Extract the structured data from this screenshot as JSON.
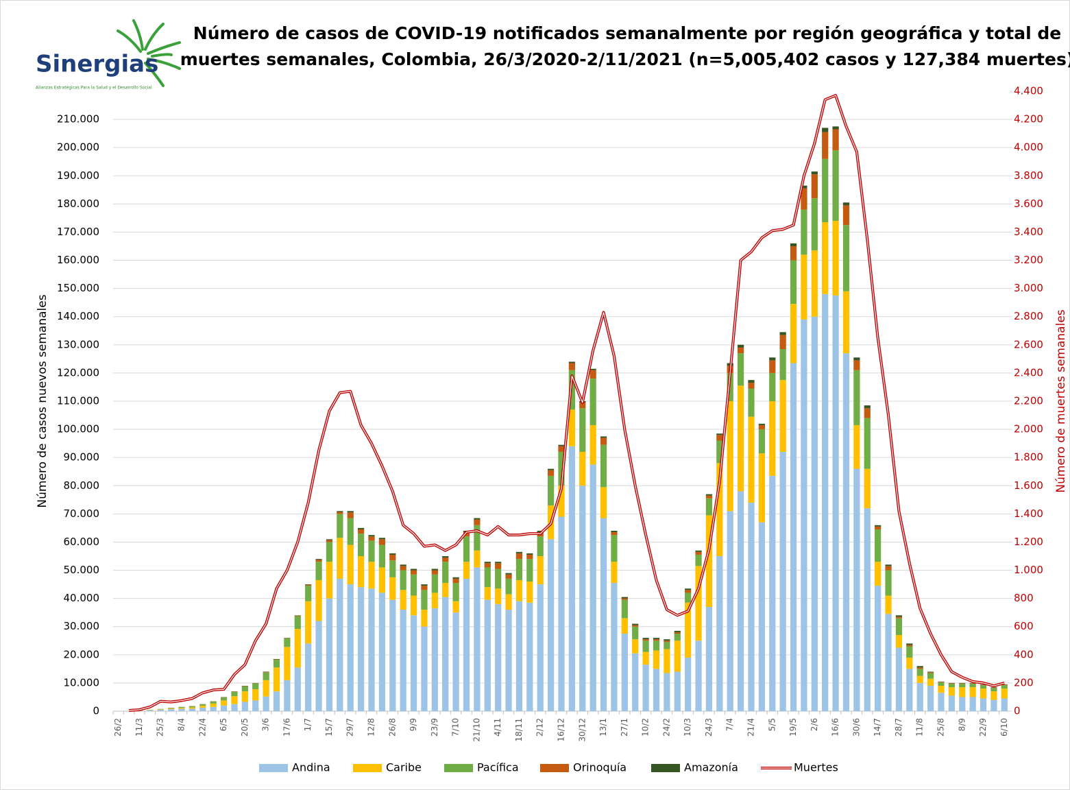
{
  "logo": {
    "name": "Sinergias",
    "tagline": "Alianzas Estratégicas Para la Salud y el Desarrollo Social"
  },
  "chart_data": {
    "type": "bar",
    "stacked": true,
    "title": [
      "Número de casos de COVID-19 notificados semanalmente por región geográfica y total de",
      "muertes semanales, Colombia, 26/3/2020-2/11/2021 (n=5,005,402 casos y 127,384 muertes)"
    ],
    "y_label": "Número de casos nuevos semanales",
    "y2_label": "Número de muertes semanales",
    "categories": [
      "26/2",
      null,
      "11/3",
      null,
      "25/3",
      null,
      "8/4",
      null,
      "22/4",
      null,
      "6/5",
      null,
      "20/5",
      null,
      "3/6",
      null,
      "17/6",
      null,
      "1/7",
      null,
      "15/7",
      null,
      "29/7",
      null,
      "12/8",
      null,
      "26/8",
      null,
      "9/9",
      null,
      "23/9",
      null,
      "7/10",
      null,
      "21/10",
      null,
      "4/11",
      null,
      "18/11",
      null,
      "2/12",
      null,
      "16/12",
      null,
      "30/12",
      null,
      "13/1",
      null,
      "27/1",
      null,
      "10/2",
      null,
      "24/2",
      null,
      "10/3",
      null,
      "24/3",
      null,
      "7/4",
      null,
      "21/4",
      null,
      "5/5",
      null,
      "19/5",
      null,
      "2/6",
      null,
      "16/6",
      null,
      "30/6",
      null,
      "14/7",
      null,
      "28/7",
      null,
      "11/8",
      null,
      "25/8",
      null,
      "8/9",
      null,
      "22/9",
      null,
      "6/10"
    ],
    "series": [
      {
        "name": "Andina",
        "color": "#9dc3e6",
        "values": [
          0,
          0,
          100,
          300,
          500,
          700,
          800,
          900,
          1200,
          1500,
          2000,
          2500,
          3300,
          3800,
          5200,
          7000,
          11000,
          15500,
          24000,
          32000,
          40000,
          47000,
          45000,
          44000,
          43500,
          42000,
          39500,
          36000,
          34000,
          30000,
          36500,
          40500,
          35000,
          47000,
          51000,
          39500,
          38000,
          36000,
          39000,
          38500,
          45000,
          61000,
          69000,
          94000,
          80000,
          87500,
          68500,
          45500,
          27500,
          20500,
          16500,
          15000,
          13500,
          14000,
          19000,
          25000,
          37000,
          55000,
          71000,
          78000,
          74000,
          67000,
          83500,
          92000,
          123500,
          139000,
          140000,
          148000,
          147500,
          127000,
          86000,
          72000,
          44500,
          34500,
          22500,
          15000,
          10000,
          9000,
          6500,
          5500,
          5000,
          5000,
          4500,
          4000,
          4500
        ]
      },
      {
        "name": "Caribe",
        "color": "#ffc000",
        "values": [
          0,
          0,
          50,
          100,
          150,
          250,
          350,
          450,
          700,
          1200,
          1800,
          2800,
          3700,
          4000,
          5800,
          8500,
          11800,
          13700,
          15000,
          14500,
          13000,
          14500,
          14000,
          11000,
          9500,
          9000,
          8000,
          7000,
          7000,
          6000,
          5500,
          5000,
          4000,
          6000,
          6000,
          4500,
          5500,
          5500,
          7500,
          7500,
          10000,
          12000,
          11000,
          13000,
          12000,
          14000,
          11000,
          7500,
          5500,
          5000,
          4500,
          6500,
          8500,
          11000,
          19500,
          26500,
          32500,
          33000,
          39000,
          37500,
          30500,
          24500,
          26500,
          25500,
          21000,
          23000,
          23500,
          25500,
          26500,
          22000,
          15500,
          14000,
          8500,
          6500,
          4500,
          4000,
          2500,
          2500,
          2500,
          3000,
          3500,
          3500,
          3500,
          3000,
          3500
        ]
      },
      {
        "name": "Pacífica",
        "color": "#70ad47",
        "values": [
          0,
          0,
          40,
          80,
          120,
          200,
          300,
          350,
          500,
          700,
          1000,
          1500,
          1800,
          2000,
          2700,
          2700,
          3000,
          4500,
          5500,
          6500,
          7000,
          8500,
          9500,
          8000,
          7500,
          8000,
          6000,
          7000,
          7500,
          7000,
          6500,
          7500,
          6500,
          9000,
          9000,
          7000,
          7000,
          5500,
          7500,
          8000,
          7000,
          10500,
          12000,
          14000,
          15500,
          16500,
          15000,
          9500,
          6500,
          4500,
          4000,
          3500,
          2500,
          2500,
          3500,
          4000,
          6000,
          8000,
          10000,
          11500,
          10000,
          8500,
          10000,
          11000,
          15500,
          16000,
          18500,
          22500,
          25000,
          23500,
          19500,
          18000,
          11500,
          9000,
          6000,
          4000,
          2500,
          2000,
          1200,
          1200,
          1200,
          1200,
          1200,
          1200,
          1200
        ]
      },
      {
        "name": "Orinoquía",
        "color": "#c55a11",
        "values": [
          0,
          0,
          5,
          10,
          20,
          30,
          30,
          60,
          50,
          50,
          100,
          100,
          100,
          100,
          150,
          150,
          100,
          200,
          300,
          700,
          700,
          700,
          2000,
          1500,
          1500,
          2000,
          2000,
          1500,
          1500,
          1500,
          1500,
          1500,
          1500,
          1500,
          2000,
          1500,
          2000,
          1500,
          2000,
          1500,
          1500,
          2000,
          2000,
          2500,
          2000,
          3000,
          2500,
          1000,
          500,
          500,
          500,
          500,
          500,
          500,
          1000,
          1000,
          1000,
          2000,
          2500,
          2000,
          2000,
          1500,
          4500,
          5000,
          5000,
          7500,
          8500,
          9500,
          7500,
          7000,
          3500,
          3500,
          1000,
          1500,
          500,
          500,
          500,
          300,
          200,
          200,
          200,
          200,
          200,
          200,
          200
        ]
      },
      {
        "name": "Amazonía",
        "color": "#375623",
        "values": [
          0,
          0,
          5,
          10,
          10,
          20,
          20,
          40,
          50,
          50,
          100,
          100,
          100,
          100,
          150,
          150,
          100,
          100,
          200,
          300,
          300,
          300,
          500,
          500,
          500,
          500,
          500,
          500,
          500,
          500,
          500,
          500,
          500,
          500,
          500,
          500,
          500,
          500,
          500,
          500,
          500,
          500,
          500,
          500,
          500,
          500,
          500,
          500,
          500,
          500,
          500,
          500,
          500,
          500,
          500,
          500,
          500,
          500,
          1000,
          1000,
          1000,
          500,
          1000,
          1000,
          1000,
          1000,
          1000,
          1500,
          1000,
          1000,
          1000,
          1000,
          500,
          500,
          500,
          500,
          500,
          200,
          100,
          100,
          100,
          100,
          100,
          100,
          100
        ]
      },
      {
        "name": "Muertes",
        "color": "#c00000",
        "type": "line",
        "axis": "y2",
        "values": [
          null,
          5,
          10,
          30,
          70,
          65,
          75,
          90,
          130,
          150,
          155,
          260,
          330,
          500,
          620,
          870,
          1000,
          1200,
          1480,
          1850,
          2130,
          2260,
          2270,
          2030,
          1900,
          1740,
          1560,
          1320,
          1260,
          1170,
          1180,
          1140,
          1180,
          1270,
          1280,
          1250,
          1310,
          1250,
          1250,
          1260,
          1260,
          1330,
          1580,
          2380,
          2190,
          2560,
          2830,
          2520,
          2000,
          1600,
          1250,
          930,
          720,
          680,
          710,
          870,
          1150,
          1630,
          2400,
          3200,
          3260,
          3360,
          3410,
          3420,
          3450,
          3800,
          4030,
          4340,
          4370,
          4150,
          3970,
          3350,
          2650,
          2100,
          1420,
          1050,
          730,
          550,
          400,
          280,
          240,
          210,
          200,
          180,
          200
        ]
      }
    ],
    "ylim": [
      0,
      220000
    ],
    "yticks": [
      0,
      {
        "value": 10000,
        "label": "10.000"
      },
      {
        "value": 20000,
        "label": "20.000"
      },
      {
        "value": 30000,
        "label": "30.000"
      },
      {
        "value": 40000,
        "label": "40.000"
      },
      {
        "value": 50000,
        "label": "50.000"
      },
      {
        "value": 60000,
        "label": "60.000"
      },
      {
        "value": 70000,
        "label": "70.000"
      },
      {
        "value": 80000,
        "label": "80.000"
      },
      {
        "value": 90000,
        "label": "90.000"
      },
      {
        "value": 100000,
        "label": "100.000"
      },
      {
        "value": 110000,
        "label": "110.000"
      },
      {
        "value": 120000,
        "label": "120.000"
      },
      {
        "value": 130000,
        "label": "130.000"
      },
      {
        "value": 140000,
        "label": "140.000"
      },
      {
        "value": 150000,
        "label": "150.000"
      },
      {
        "value": 160000,
        "label": "160.000"
      },
      {
        "value": 170000,
        "label": "170.000"
      },
      {
        "value": 180000,
        "label": "180.000"
      },
      {
        "value": 190000,
        "label": "190.000"
      },
      {
        "value": 200000,
        "label": "200.000"
      },
      {
        "value": 210000,
        "label": "210.000"
      }
    ],
    "y2lim": [
      0,
      4400
    ],
    "y2ticks": [
      0,
      200,
      400,
      600,
      800,
      {
        "value": 1000,
        "label": "1.000"
      },
      {
        "value": 1200,
        "label": "1.200"
      },
      {
        "value": 1400,
        "label": "1.400"
      },
      {
        "value": 1600,
        "label": "1.600"
      },
      {
        "value": 1800,
        "label": "1.800"
      },
      {
        "value": 2000,
        "label": "2.000"
      },
      {
        "value": 2200,
        "label": "2.200"
      },
      {
        "value": 2400,
        "label": "2.400"
      },
      {
        "value": 2600,
        "label": "2.600"
      },
      {
        "value": 2800,
        "label": "2.800"
      },
      {
        "value": 3000,
        "label": "3.000"
      },
      {
        "value": 3200,
        "label": "3.200"
      },
      {
        "value": 3400,
        "label": "3.400"
      },
      {
        "value": 3600,
        "label": "3.600"
      },
      {
        "value": 3800,
        "label": "3.800"
      },
      {
        "value": 4000,
        "label": "4.000"
      },
      {
        "value": 4200,
        "label": "4.200"
      },
      {
        "value": 4400,
        "label": "4.400"
      }
    ],
    "grid": true,
    "legend": "bottom"
  }
}
